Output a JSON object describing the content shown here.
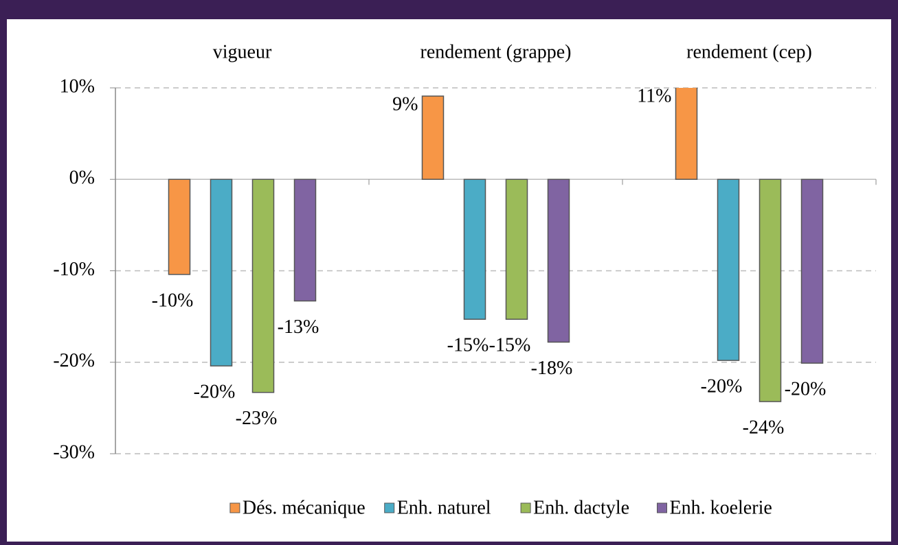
{
  "chart_data": {
    "type": "bar",
    "categories": [
      "vigueur",
      "rendement (grappe)",
      "rendement (cep)"
    ],
    "series": [
      {
        "name": "Dés. mécanique",
        "color": "#f79646",
        "values": [
          -10.4,
          9.1,
          11
        ],
        "value_labels": [
          "-10%",
          "9%",
          "11%"
        ]
      },
      {
        "name": "Enh. naturel",
        "color": "#4bacc6",
        "values": [
          -20.4,
          -15.3,
          -19.8
        ],
        "value_labels": [
          "-20%",
          "-15%",
          "-20%"
        ]
      },
      {
        "name": "Enh. dactyle",
        "color": "#9bbb59",
        "values": [
          -23.3,
          -15.3,
          -24.3
        ],
        "value_labels": [
          "-23%",
          "-15%",
          "-24%"
        ]
      },
      {
        "name": "Enh. koelerie",
        "color": "#8064a2",
        "values": [
          -13.3,
          -17.8,
          -20.1
        ],
        "value_labels": [
          "-13%",
          "-18%",
          "-20%"
        ]
      }
    ],
    "ylim": [
      -30,
      10
    ],
    "yticks": [
      {
        "value": -30,
        "label": "-30%"
      },
      {
        "value": -20,
        "label": "-20%"
      },
      {
        "value": -10,
        "label": "-10%"
      },
      {
        "value": 0,
        "label": "0%"
      },
      {
        "value": 10,
        "label": "10%"
      }
    ],
    "grid": true,
    "legend": "bottom"
  }
}
